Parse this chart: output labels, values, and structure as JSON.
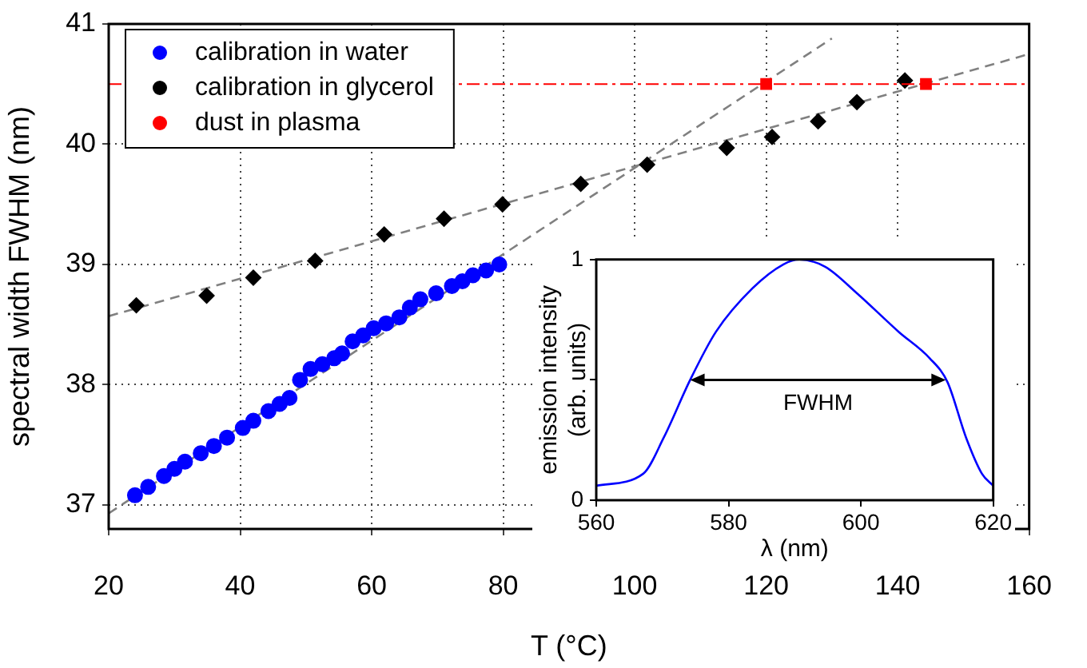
{
  "chart_data": [
    {
      "type": "scatter",
      "xlabel": "T (°C)",
      "ylabel": "spectral width FWHM (nm)",
      "xlim": [
        20,
        160
      ],
      "ylim": [
        36.8,
        41
      ],
      "xticks": [
        20,
        40,
        60,
        80,
        100,
        120,
        140,
        160
      ],
      "yticks": [
        37,
        38,
        39,
        40,
        41
      ],
      "grid": true,
      "legend": "top left",
      "series": [
        {
          "name": "calibration in water",
          "color": "#0000ff",
          "marker": "circle",
          "x": [
            24,
            26,
            28.4,
            30,
            31.6,
            34,
            36,
            38,
            40.4,
            42,
            44.3,
            46,
            47.5,
            49.1,
            50.7,
            52.5,
            54.3,
            55.5,
            57.1,
            58.7,
            60.3,
            62.2,
            64.2,
            65.8,
            67.4,
            69.8,
            72.2,
            73.8,
            75.4,
            77.4,
            79.4
          ],
          "values": [
            37.08,
            37.15,
            37.24,
            37.3,
            37.36,
            37.43,
            37.49,
            37.56,
            37.64,
            37.7,
            37.78,
            37.84,
            37.89,
            38.04,
            38.13,
            38.17,
            38.22,
            38.26,
            38.36,
            38.41,
            38.47,
            38.51,
            38.56,
            38.64,
            38.71,
            38.76,
            38.82,
            38.86,
            38.91,
            38.95,
            39.0
          ]
        },
        {
          "name": "calibration in glycerol",
          "color": "#000000",
          "marker": "diamond",
          "x": [
            24.2,
            34.9,
            42,
            51.4,
            61.9,
            71,
            79.9,
            91.8,
            101.9,
            114,
            120.9,
            127.9,
            133.8,
            141.1
          ],
          "values": [
            38.66,
            38.74,
            38.89,
            39.03,
            39.25,
            39.38,
            39.5,
            39.67,
            39.83,
            39.97,
            40.06,
            40.19,
            40.35,
            40.53
          ]
        },
        {
          "name": "dust in plasma",
          "color": "#ff0000",
          "marker": "square",
          "x": [
            120,
            144.3
          ],
          "values": [
            40.5,
            40.5
          ]
        },
        {
          "type": "line",
          "color": "#808080",
          "line_style": "dashed",
          "marker": "none",
          "x": [
            20,
            130
          ],
          "values": [
            36.93,
            40.88
          ]
        },
        {
          "type": "line",
          "color": "#808080",
          "line_style": "dashed",
          "marker": "none",
          "x": [
            20,
            160
          ],
          "values": [
            38.57,
            40.75
          ]
        }
      ],
      "ref_lines": [
        {
          "axis": "y",
          "value": 40.5,
          "color": "#ff0000",
          "line_style": "dashed"
        }
      ]
    },
    {
      "type": "line",
      "xlabel": "λ (nm)",
      "ylabel": "emission intensity\n(arb. units)",
      "xlim": [
        560,
        620
      ],
      "ylim": [
        0,
        1
      ],
      "xticks": [
        560,
        580,
        600,
        620
      ],
      "yticks": [
        0,
        {
          "value": 0.5,
          "label": null
        },
        1
      ],
      "series": [
        {
          "color": "#0000ff",
          "x": [
            560,
            567.1,
            570.2,
            574.2,
            578.1,
            583.6,
            588.3,
            590.7,
            594.6,
            599.4,
            605.7,
            610.4,
            613.1,
            615.9,
            618.3,
            620
          ],
          "values": [
            0.06,
            0.11,
            0.26,
            0.5,
            0.7,
            0.88,
            0.98,
            1.0,
            0.97,
            0.86,
            0.7,
            0.59,
            0.49,
            0.26,
            0.11,
            0.06
          ]
        }
      ],
      "annotations": [
        "FWHM"
      ]
    }
  ]
}
